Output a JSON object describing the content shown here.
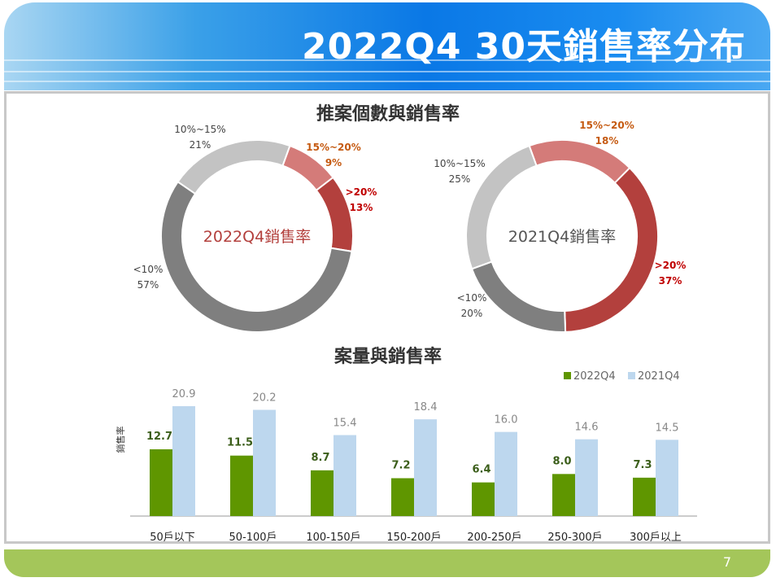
{
  "slide": {
    "title": "2022Q4 30天銷售率分布",
    "page_number": "7"
  },
  "colors": {
    "lt10": "#7f7f7f",
    "10to15": "#c3c3c3",
    "15to20": "#d47b79",
    "gt20": "#b3403d",
    "bar2022": "#5f9600",
    "bar2021": "#bdd7ee"
  },
  "chart_data": [
    {
      "type": "pie",
      "title": "推案個數與銷售率",
      "center_label": "2022Q4銷售率",
      "donut": true,
      "slices": [
        {
          "label": "15%~20%",
          "value": 9
        },
        {
          "label": ">20%",
          "value": 13
        },
        {
          "label": "<10%",
          "value": 57
        },
        {
          "label": "10%~15%",
          "value": 21
        }
      ]
    },
    {
      "type": "pie",
      "center_label": "2021Q4銷售率",
      "donut": true,
      "slices": [
        {
          "label": "15%~20%",
          "value": 18
        },
        {
          "label": ">20%",
          "value": 37
        },
        {
          "label": "<10%",
          "value": 20
        },
        {
          "label": "10%~15%",
          "value": 25
        }
      ]
    },
    {
      "type": "bar",
      "title": "案量與銷售率",
      "ylabel": "銷售率",
      "legend": "top-right",
      "categories": [
        "50戶以下",
        "50-100戶",
        "100-150戶",
        "150-200戶",
        "200-250戶",
        "250-300戶",
        "300戶以上"
      ],
      "series": [
        {
          "name": "2022Q4",
          "values": [
            12.7,
            11.5,
            8.7,
            7.2,
            6.4,
            8.0,
            7.3
          ]
        },
        {
          "name": "2021Q4",
          "values": [
            20.9,
            20.2,
            15.4,
            18.4,
            16.0,
            14.6,
            14.5
          ]
        }
      ]
    }
  ]
}
